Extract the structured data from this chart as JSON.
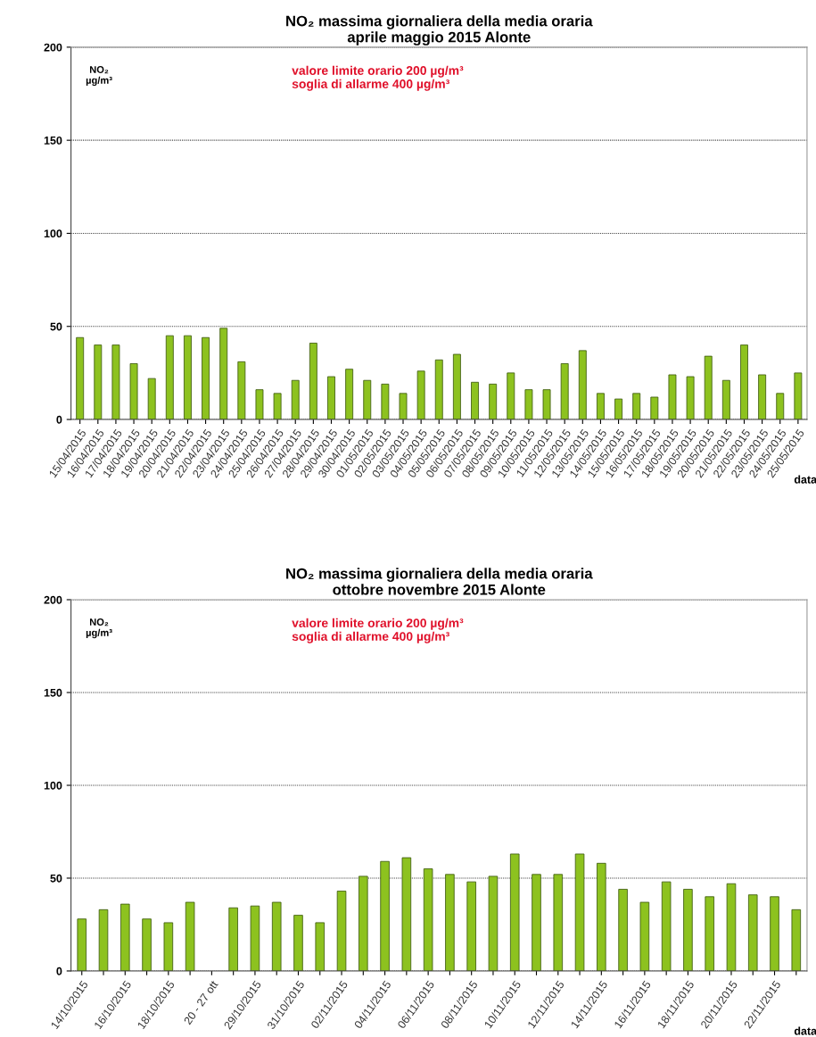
{
  "chart_data": [
    {
      "type": "bar",
      "title": "NO₂ massima giornaliera della media oraria\naprile maggio 2015 Alonte",
      "ylabel": "NO₂\nµg/m³",
      "xlabel": "data",
      "categories": [
        "15/04/2015",
        "16/04/2015",
        "17/04/2015",
        "18/04/2015",
        "19/04/2015",
        "20/04/2015",
        "21/04/2015",
        "22/04/2015",
        "23/04/2015",
        "24/04/2015",
        "25/04/2015",
        "26/04/2015",
        "27/04/2015",
        "28/04/2015",
        "29/04/2015",
        "30/04/2015",
        "01/05/2015",
        "02/05/2015",
        "03/05/2015",
        "04/05/2015",
        "05/05/2015",
        "06/05/2015",
        "07/05/2015",
        "08/05/2015",
        "09/05/2015",
        "10/05/2015",
        "11/05/2015",
        "12/05/2015",
        "13/05/2015",
        "14/05/2015",
        "15/05/2015",
        "16/05/2015",
        "17/05/2015",
        "18/05/2015",
        "19/05/2015",
        "20/05/2015",
        "21/05/2015",
        "22/05/2015",
        "23/05/2015",
        "24/05/2015",
        "25/05/2015"
      ],
      "values": [
        44,
        40,
        40,
        30,
        22,
        45,
        45,
        44,
        49,
        31,
        16,
        14,
        21,
        41,
        23,
        27,
        21,
        19,
        14,
        26,
        32,
        35,
        20,
        19,
        25,
        16,
        16,
        30,
        37,
        14,
        11,
        14,
        12,
        24,
        23,
        34,
        21,
        40,
        24,
        14,
        25
      ],
      "color": "#8dc21f",
      "ylim": [
        0,
        200
      ],
      "yticks": [
        0,
        50,
        100,
        150,
        200
      ],
      "grid": "y",
      "annotations": [
        "valore limite orario 200 µg/m³\nsoglia di allarme 400 µg/m³"
      ]
    },
    {
      "type": "bar",
      "title": "NO₂ massima giornaliera della media oraria\nottobre novembre 2015 Alonte",
      "ylabel": "NO₂\nµg/m³",
      "xlabel": "data",
      "categories": [
        "14/10/2015",
        null,
        "16/10/2015",
        null,
        "18/10/2015",
        null,
        "20 - 27 ott",
        null,
        "29/10/2015",
        null,
        "31/10/2015",
        null,
        "02/11/2015",
        null,
        "04/11/2015",
        null,
        "06/11/2015",
        null,
        "08/11/2015",
        null,
        "10/11/2015",
        null,
        "12/11/2015",
        null,
        "14/11/2015",
        null,
        "16/11/2015",
        null,
        "18/11/2015",
        null,
        "20/11/2015",
        null,
        "22/11/2015",
        null
      ],
      "values": [
        28,
        33,
        36,
        28,
        26,
        37,
        null,
        34,
        35,
        37,
        30,
        26,
        43,
        51,
        59,
        61,
        55,
        52,
        48,
        51,
        63,
        52,
        52,
        63,
        58,
        44,
        37,
        48,
        44,
        40,
        47,
        41,
        40,
        33
      ],
      "color": "#8dc21f",
      "ylim": [
        0,
        200
      ],
      "yticks": [
        0,
        50,
        100,
        150,
        200
      ],
      "grid": "y",
      "annotations": [
        "valore limite orario 200 µg/m³\nsoglia di allarme 400 µg/m³"
      ]
    }
  ]
}
